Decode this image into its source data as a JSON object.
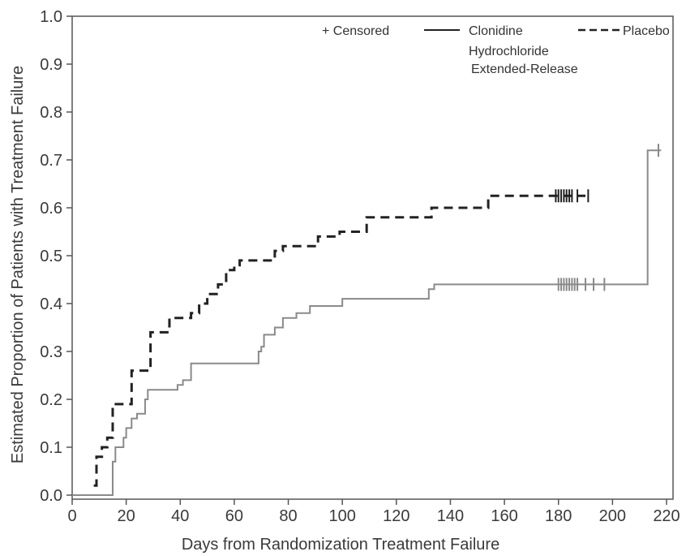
{
  "chart_data": {
    "type": "line",
    "subtype": "kaplan-meier step",
    "xlabel": "Days from Randomization Treatment Failure",
    "ylabel": "Estimated Proportion of Patients with Treatment Failure",
    "xlim": [
      0,
      220
    ],
    "ylim": [
      0,
      1.0
    ],
    "xticks": [
      "0",
      "20",
      "40",
      "60",
      "80",
      "100",
      "120",
      "140",
      "160",
      "180",
      "200",
      "220"
    ],
    "yticks": [
      "0.0",
      "0.1",
      "0.2",
      "0.3",
      "0.4",
      "0.5",
      "0.6",
      "0.7",
      "0.8",
      "0.9",
      "1.0"
    ],
    "grid": false,
    "legend_position": "top-right",
    "legend": {
      "censored": "+ Censored",
      "clonidine_line1": "Clonidine",
      "clonidine_line2": "Hydrochloride",
      "clonidine_line3": "Extended-Release",
      "placebo": "Placebo"
    },
    "series": [
      {
        "name": "Clonidine Hydrochloride Extended-Release",
        "line_style": "solid",
        "color": "#8a8a8a",
        "steps": [
          [
            0,
            0.0
          ],
          [
            15,
            0.07
          ],
          [
            16,
            0.1
          ],
          [
            19,
            0.12
          ],
          [
            20,
            0.14
          ],
          [
            22,
            0.16
          ],
          [
            24,
            0.17
          ],
          [
            27,
            0.2
          ],
          [
            28,
            0.22
          ],
          [
            39,
            0.23
          ],
          [
            41,
            0.24
          ],
          [
            44,
            0.275
          ],
          [
            69,
            0.3
          ],
          [
            70,
            0.31
          ],
          [
            71,
            0.335
          ],
          [
            75,
            0.35
          ],
          [
            78,
            0.37
          ],
          [
            83,
            0.38
          ],
          [
            88,
            0.395
          ],
          [
            100,
            0.41
          ],
          [
            132,
            0.43
          ],
          [
            134,
            0.44
          ],
          [
            213,
            0.72
          ],
          [
            218,
            0.72
          ]
        ],
        "censored_x": [
          180,
          181,
          182,
          183,
          184,
          185,
          186,
          187,
          190,
          193,
          197,
          217
        ]
      },
      {
        "name": "Placebo",
        "line_style": "dashed",
        "color": "#222222",
        "steps": [
          [
            8,
            0.02
          ],
          [
            9,
            0.08
          ],
          [
            11,
            0.1
          ],
          [
            13,
            0.12
          ],
          [
            15,
            0.19
          ],
          [
            20,
            0.19
          ],
          [
            22,
            0.26
          ],
          [
            28,
            0.26
          ],
          [
            29,
            0.34
          ],
          [
            35,
            0.34
          ],
          [
            36,
            0.37
          ],
          [
            42,
            0.37
          ],
          [
            44,
            0.38
          ],
          [
            47,
            0.4
          ],
          [
            50,
            0.42
          ],
          [
            54,
            0.44
          ],
          [
            57,
            0.47
          ],
          [
            60,
            0.48
          ],
          [
            62,
            0.49
          ],
          [
            74,
            0.49
          ],
          [
            75,
            0.51
          ],
          [
            78,
            0.52
          ],
          [
            88,
            0.52
          ],
          [
            91,
            0.54
          ],
          [
            97,
            0.54
          ],
          [
            99,
            0.55
          ],
          [
            108,
            0.55
          ],
          [
            109,
            0.58
          ],
          [
            132,
            0.58
          ],
          [
            133,
            0.6
          ],
          [
            153,
            0.6
          ],
          [
            154,
            0.625
          ],
          [
            190,
            0.625
          ]
        ],
        "censored_x": [
          179,
          180,
          181,
          182,
          183,
          184,
          185,
          187,
          191
        ]
      }
    ]
  }
}
